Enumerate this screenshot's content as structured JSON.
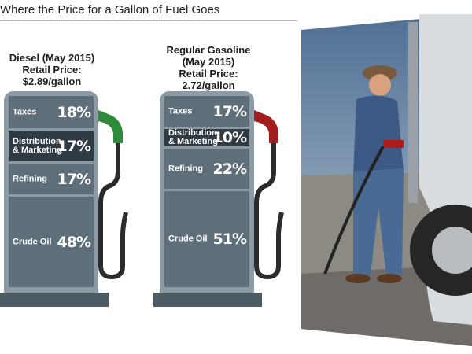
{
  "title": "Where the Price for a Gallon of Fuel Goes",
  "chart_data": [
    {
      "type": "bar",
      "title_line1": "Diesel (May 2015)",
      "title_line2": "Retail Price: $2.89/gallon",
      "stacked": true,
      "categories": [
        "Taxes",
        "Distribution & Marketing",
        "Refining",
        "Crude Oil"
      ],
      "values": [
        18,
        17,
        17,
        48
      ],
      "value_labels": [
        "18%",
        "17%",
        "17%",
        "48%"
      ],
      "nozzle_color": "#2e8b3a"
    },
    {
      "type": "bar",
      "title_line1": "Regular Gasoline",
      "title_line2": "(May 2015)",
      "title_line3": "Retail Price: 2.72/gallon",
      "stacked": true,
      "categories": [
        "Taxes",
        "Distribution & Marketing",
        "Refining",
        "Crude Oil"
      ],
      "values": [
        17,
        10,
        22,
        51
      ],
      "value_labels": [
        "17%",
        "10%",
        "22%",
        "51%"
      ],
      "nozzle_color": "#a21d1d"
    }
  ],
  "colors": {
    "segment_light": "#5f6f7a",
    "segment_dark": "#2f3a43",
    "pump_body": "#8c9aa3",
    "pump_base": "#4d5b64"
  },
  "photo": {
    "icon": "trucker-fueling-photo"
  }
}
